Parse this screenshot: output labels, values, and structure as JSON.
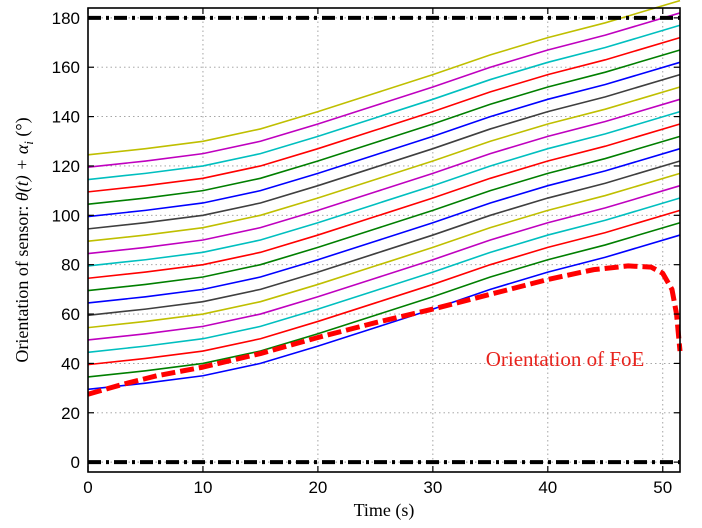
{
  "chart_data": {
    "type": "line",
    "xlabel": "Time (s)",
    "ylabel_prefix": "Orientation of sensor: ",
    "ylabel_math": "θ(t) + α",
    "ylabel_sub": "i",
    "ylabel_unit": " (°)",
    "xlim": [
      0,
      51.5
    ],
    "ylim": [
      -4,
      184
    ],
    "x_ticks": [
      0,
      10,
      20,
      30,
      40,
      50
    ],
    "y_ticks": [
      0,
      20,
      40,
      60,
      80,
      100,
      120,
      140,
      160,
      180
    ],
    "grid": true,
    "annotations": [
      {
        "text": "Orientation of FoE",
        "x": 41.5,
        "y": 39
      }
    ],
    "reference_lines": [
      {
        "y": 180,
        "color": "#000000",
        "style": "dash-dot"
      },
      {
        "y": 0,
        "color": "#000000",
        "style": "dash-dot"
      }
    ],
    "sensor_series": {
      "x": [
        0,
        5,
        10,
        15,
        20,
        25,
        30,
        35,
        40,
        45,
        51.5
      ],
      "base_values": [
        29.5,
        32,
        35,
        40,
        47,
        54.5,
        62,
        70,
        77,
        83,
        92
      ],
      "offsets": [
        0,
        5,
        10,
        15,
        20,
        25,
        30,
        35,
        40,
        45,
        50,
        55,
        60,
        65,
        70,
        75,
        80,
        85,
        90,
        95
      ],
      "colors": [
        "#0000ff",
        "#007f00",
        "#ff0000",
        "#00bfbf",
        "#bf00bf",
        "#bfbf00",
        "#3f3f3f"
      ]
    },
    "foe_series": {
      "color": "#ff0000",
      "style": "dashed",
      "x": [
        0,
        3,
        6,
        10,
        15,
        20,
        25,
        30,
        35,
        40,
        44,
        47,
        49,
        50,
        50.8,
        51.2,
        51.5
      ],
      "values": [
        27.5,
        31.5,
        35,
        38.5,
        44,
        50.5,
        56.5,
        62,
        68,
        74,
        78,
        79.5,
        79,
        76.5,
        70,
        60,
        45
      ]
    }
  }
}
